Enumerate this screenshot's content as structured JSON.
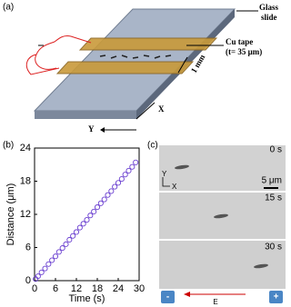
{
  "panel_a": {
    "label": "(a)",
    "glass": [
      "Glass",
      "slide"
    ],
    "cu_tape": [
      "Cu tape",
      "(t= 35 μm)"
    ],
    "scale": "1 mm",
    "x_axis": "X",
    "y_axis": "Y"
  },
  "chart_data": {
    "label": "(b)",
    "type": "scatter",
    "x_label": "Time (s)",
    "y_label": "Distance (μm)",
    "color": "#6a3fd0",
    "xlim": [
      0,
      30
    ],
    "xticks": [
      0,
      6,
      12,
      18,
      24,
      30
    ],
    "ylim": [
      0,
      24
    ],
    "yticks": [
      0,
      6,
      12,
      18,
      24
    ],
    "series": [
      {
        "x": [
          0.3,
          1,
          2,
          3,
          4,
          5,
          6,
          7,
          8,
          9,
          10,
          11,
          12,
          13,
          14,
          15,
          16,
          17,
          18,
          19,
          20,
          21,
          22,
          23,
          24,
          25,
          26,
          27,
          28,
          29
        ],
        "values": [
          0.3,
          0.8,
          1.5,
          2.2,
          3.0,
          3.7,
          4.4,
          5.2,
          5.9,
          6.6,
          7.4,
          8.1,
          8.8,
          9.6,
          10.3,
          11.0,
          11.8,
          12.5,
          13.3,
          14.0,
          14.7,
          15.5,
          16.2,
          17.0,
          17.7,
          18.4,
          19.2,
          19.9,
          20.6,
          21.4
        ]
      }
    ]
  },
  "panel_c": {
    "label": "(c)",
    "frames": [
      "0 s",
      "15 s",
      "30 s"
    ],
    "scale_bar": "5 μm",
    "axes": [
      "Y",
      "X"
    ],
    "electrodes": [
      "-",
      "+"
    ],
    "field": "E"
  }
}
